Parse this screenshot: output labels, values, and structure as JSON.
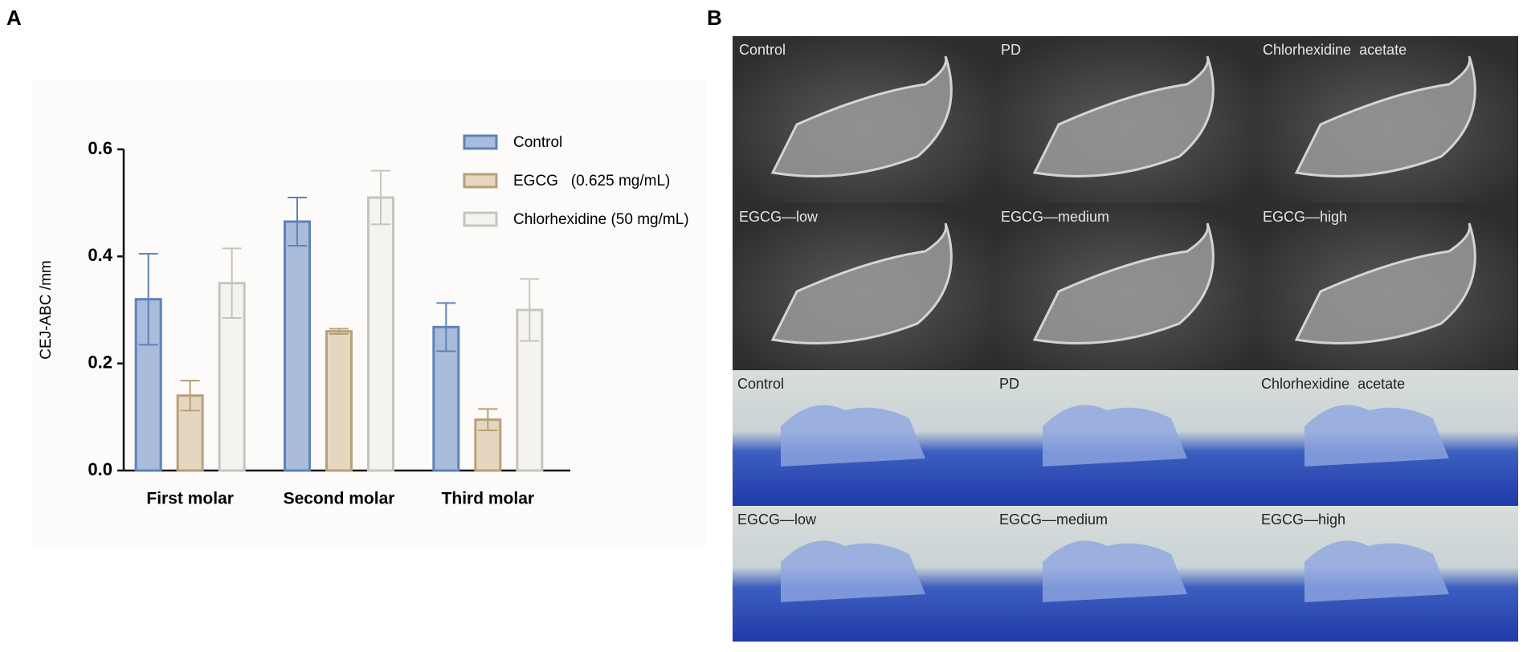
{
  "panel_labels": [
    "A",
    "B"
  ],
  "chart_data": {
    "type": "bar",
    "ylabel": "CEJ-ABC /mm",
    "categories": [
      "First molar",
      "Second molar",
      "Third molar"
    ],
    "series": [
      {
        "name": "Control",
        "color": "#a9bcdc",
        "edge": "#5f82b8",
        "values": [
          0.32,
          0.465,
          0.268
        ],
        "errors": [
          0.085,
          0.045,
          0.045
        ]
      },
      {
        "name": "EGCG   (0.625 mg/mL)",
        "color": "#e5d7bf",
        "edge": "#b89f7b",
        "values": [
          0.14,
          0.26,
          0.095
        ],
        "errors": [
          0.028,
          0.005,
          0.02
        ]
      },
      {
        "name": "Chlorhexidine (50 mg/mL)",
        "color": "#f5f3ef",
        "edge": "#c6c4c0",
        "values": [
          0.35,
          0.51,
          0.3
        ],
        "errors": [
          0.065,
          0.05,
          0.058
        ]
      }
    ],
    "ylim": [
      0,
      0.6
    ],
    "yticks": [
      {
        "value": 0,
        "label": "0.0"
      },
      0.2,
      0.4,
      0.6
    ],
    "legend": "top-right"
  },
  "images": {
    "xray_labels": [
      "Control",
      "PD",
      "Chlorhexidine  acetate",
      "EGCG—low",
      "EGCG—medium",
      "EGCG—high"
    ],
    "stain_labels": [
      "Control",
      "PD",
      "Chlorhexidine  acetate",
      "EGCG—low",
      "EGCG—medium",
      "EGCG—high"
    ]
  }
}
